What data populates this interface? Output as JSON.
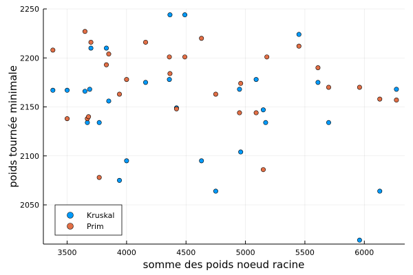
{
  "chart_data": {
    "type": "scatter",
    "xlabel": "somme des poids noeud racine",
    "ylabel": "poids tournée minimale",
    "xlim": [
      3300,
      6340
    ],
    "ylim": [
      2010,
      2250
    ],
    "xticks": [
      3500,
      4000,
      4500,
      5000,
      5500,
      6000
    ],
    "yticks": [
      2050,
      2100,
      2150,
      2200,
      2250
    ],
    "grid": true,
    "legend_position": "bottom-left",
    "series": [
      {
        "name": "Kruskal",
        "color": "#009AFA",
        "points": [
          [
            3380,
            2167
          ],
          [
            3500,
            2167
          ],
          [
            3650,
            2166
          ],
          [
            3670,
            2134
          ],
          [
            3690,
            2168
          ],
          [
            3700,
            2210
          ],
          [
            3770,
            2134
          ],
          [
            3830,
            2210
          ],
          [
            3850,
            2156
          ],
          [
            3940,
            2075
          ],
          [
            4000,
            2095
          ],
          [
            4160,
            2175
          ],
          [
            4360,
            2178
          ],
          [
            4365,
            2244
          ],
          [
            4420,
            2149
          ],
          [
            4490,
            2244
          ],
          [
            4630,
            2095
          ],
          [
            4750,
            2064
          ],
          [
            4950,
            2168
          ],
          [
            4960,
            2104
          ],
          [
            5090,
            2178
          ],
          [
            5150,
            2147
          ],
          [
            5170,
            2134
          ],
          [
            5450,
            2224
          ],
          [
            5610,
            2175
          ],
          [
            5700,
            2134
          ],
          [
            5960,
            2014
          ],
          [
            6130,
            2064
          ],
          [
            6270,
            2168
          ]
        ]
      },
      {
        "name": "Prim",
        "color": "#E26F46",
        "points": [
          [
            3380,
            2208
          ],
          [
            3500,
            2138
          ],
          [
            3650,
            2227
          ],
          [
            3670,
            2138
          ],
          [
            3680,
            2140
          ],
          [
            3700,
            2216
          ],
          [
            3770,
            2078
          ],
          [
            3830,
            2193
          ],
          [
            3850,
            2204
          ],
          [
            3940,
            2163
          ],
          [
            4000,
            2178
          ],
          [
            4160,
            2216
          ],
          [
            4360,
            2201
          ],
          [
            4365,
            2184
          ],
          [
            4420,
            2148
          ],
          [
            4490,
            2201
          ],
          [
            4630,
            2220
          ],
          [
            4750,
            2163
          ],
          [
            4950,
            2144
          ],
          [
            4960,
            2174
          ],
          [
            5090,
            2144
          ],
          [
            5150,
            2086
          ],
          [
            5180,
            2201
          ],
          [
            5450,
            2212
          ],
          [
            5610,
            2190
          ],
          [
            5700,
            2170
          ],
          [
            5960,
            2170
          ],
          [
            6130,
            2158
          ],
          [
            6270,
            2157
          ]
        ]
      }
    ]
  }
}
